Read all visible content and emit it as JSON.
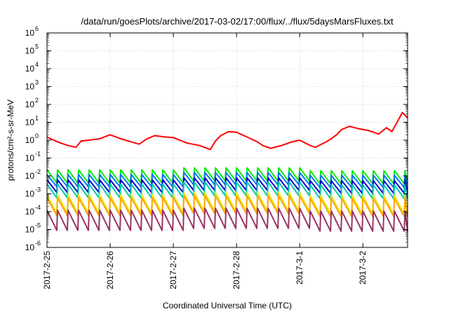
{
  "chart_data": {
    "type": "line",
    "title": "/data/run/goesPlots/archive/2017-03-02/17:00/flux/../flux/5daysMarsFluxes.txt",
    "xlabel": "Coordinated Universal Time (UTC)",
    "ylabel": "protons/cm²-s-sr-MeV",
    "xlim": [
      "2017-02-25 00:00",
      "2017-03-02 17:00"
    ],
    "ylim": [
      1e-06,
      1000000.0
    ],
    "yscale": "log",
    "grid": true,
    "x_ticks": [
      "2017-2-25",
      "2017-2-26",
      "2017-2-27",
      "2017-2-28",
      "2017-3-1",
      "2017-3-2"
    ],
    "y_ticks": [
      {
        "base": "10",
        "exp": "-6"
      },
      {
        "base": "10",
        "exp": "-5"
      },
      {
        "base": "10",
        "exp": "-4"
      },
      {
        "base": "10",
        "exp": "-3"
      },
      {
        "base": "10",
        "exp": "-2"
      },
      {
        "base": "10",
        "exp": "-1"
      },
      {
        "base": "10",
        "exp": "0"
      },
      {
        "base": "10",
        "exp": "1"
      },
      {
        "base": "10",
        "exp": "2"
      },
      {
        "base": "10",
        "exp": "3"
      },
      {
        "base": "10",
        "exp": "4"
      },
      {
        "base": "10",
        "exp": "5"
      },
      {
        "base": "10",
        "exp": "6"
      }
    ],
    "series": [
      {
        "color": "#ff0000",
        "width": 2,
        "t": [
          "2017-02-25 00:00",
          "2017-02-25 04:00",
          "2017-02-25 08:00",
          "2017-02-25 11:00",
          "2017-02-25 13:00",
          "2017-02-25 16:00",
          "2017-02-25 20:00",
          "2017-02-26 00:00",
          "2017-02-26 04:00",
          "2017-02-26 08:00",
          "2017-02-26 11:00",
          "2017-02-26 14:00",
          "2017-02-26 17:00",
          "2017-02-26 21:00",
          "2017-02-27 00:00",
          "2017-02-27 05:00",
          "2017-02-27 10:00",
          "2017-02-27 14:00",
          "2017-02-27 16:00",
          "2017-02-27 18:00",
          "2017-02-27 21:00",
          "2017-02-28 00:00",
          "2017-02-28 04:00",
          "2017-02-28 08:00",
          "2017-02-28 10:00",
          "2017-02-28 13:00",
          "2017-02-28 17:00",
          "2017-02-28 21:00",
          "2017-03-01 00:00",
          "2017-03-01 04:00",
          "2017-03-01 06:00",
          "2017-03-01 10:00",
          "2017-03-01 12:00",
          "2017-03-01 14:00",
          "2017-03-01 16:00",
          "2017-03-01 19:00",
          "2017-03-01 22:00",
          "2017-03-02 02:00",
          "2017-03-02 04:00",
          "2017-03-02 06:00",
          "2017-03-02 09:00",
          "2017-03-02 11:00",
          "2017-03-02 13:00",
          "2017-03-02 15:00",
          "2017-03-02 17:00"
        ],
        "y": [
          1.5,
          0.8,
          0.5,
          0.4,
          0.9,
          1.0,
          1.2,
          2.0,
          1.2,
          0.8,
          0.6,
          1.2,
          1.8,
          1.5,
          1.4,
          0.7,
          0.5,
          0.3,
          0.9,
          1.8,
          3.0,
          2.8,
          1.5,
          0.8,
          0.5,
          0.35,
          0.5,
          0.8,
          1.0,
          0.5,
          0.4,
          0.8,
          1.2,
          2.0,
          4.0,
          6.0,
          4.5,
          3.5,
          2.8,
          2.2,
          5.0,
          3.0,
          10.0,
          35.0,
          18.0
        ]
      },
      {
        "color": "#00ee00",
        "width": 2,
        "period_h": 4,
        "peak": 0.022,
        "trough": 0.004,
        "level_shifts": [
          {
            "t": "2017-02-27 01:00",
            "factor": 1.3
          },
          {
            "t": "2017-03-01 01:00",
            "factor": 0.9
          }
        ]
      },
      {
        "color": "#0077ee",
        "width": 2,
        "period_h": 4,
        "peak": 0.012,
        "trough": 0.0025,
        "level_shifts": [
          {
            "t": "2017-02-27 01:00",
            "factor": 1.3
          },
          {
            "t": "2017-03-01 01:00",
            "factor": 0.9
          }
        ]
      },
      {
        "color": "#0000cc",
        "width": 2,
        "period_h": 4,
        "peak": 0.006,
        "trough": 0.0012,
        "level_shifts": [
          {
            "t": "2017-02-27 01:00",
            "factor": 1.3
          },
          {
            "t": "2017-03-01 01:00",
            "factor": 0.9
          }
        ]
      },
      {
        "color": "#00c8a8",
        "width": 2,
        "period_h": 4,
        "peak": 0.0035,
        "trough": 0.0006,
        "level_shifts": [
          {
            "t": "2017-02-27 01:00",
            "factor": 1.3
          },
          {
            "t": "2017-03-01 01:00",
            "factor": 0.9
          }
        ]
      },
      {
        "color": "#e8e81a",
        "width": 2,
        "period_h": 4,
        "peak": 0.0009,
        "trough": 8e-05,
        "level_shifts": [
          {
            "t": "2017-02-27 01:00",
            "factor": 1.3
          },
          {
            "t": "2017-03-01 01:00",
            "factor": 0.9
          }
        ]
      },
      {
        "color": "#ffa500",
        "width": 2,
        "period_h": 4,
        "peak": 0.0006,
        "trough": 6e-05,
        "level_shifts": [
          {
            "t": "2017-02-27 01:00",
            "factor": 1.3
          },
          {
            "t": "2017-03-01 01:00",
            "factor": 0.9
          }
        ]
      },
      {
        "color": "#993366",
        "width": 2,
        "period_h": 4,
        "peak": 0.00012,
        "trough": 9e-06,
        "level_shifts": [
          {
            "t": "2017-02-27 01:00",
            "factor": 1.3
          },
          {
            "t": "2017-03-01 01:00",
            "factor": 0.9
          }
        ]
      }
    ]
  }
}
